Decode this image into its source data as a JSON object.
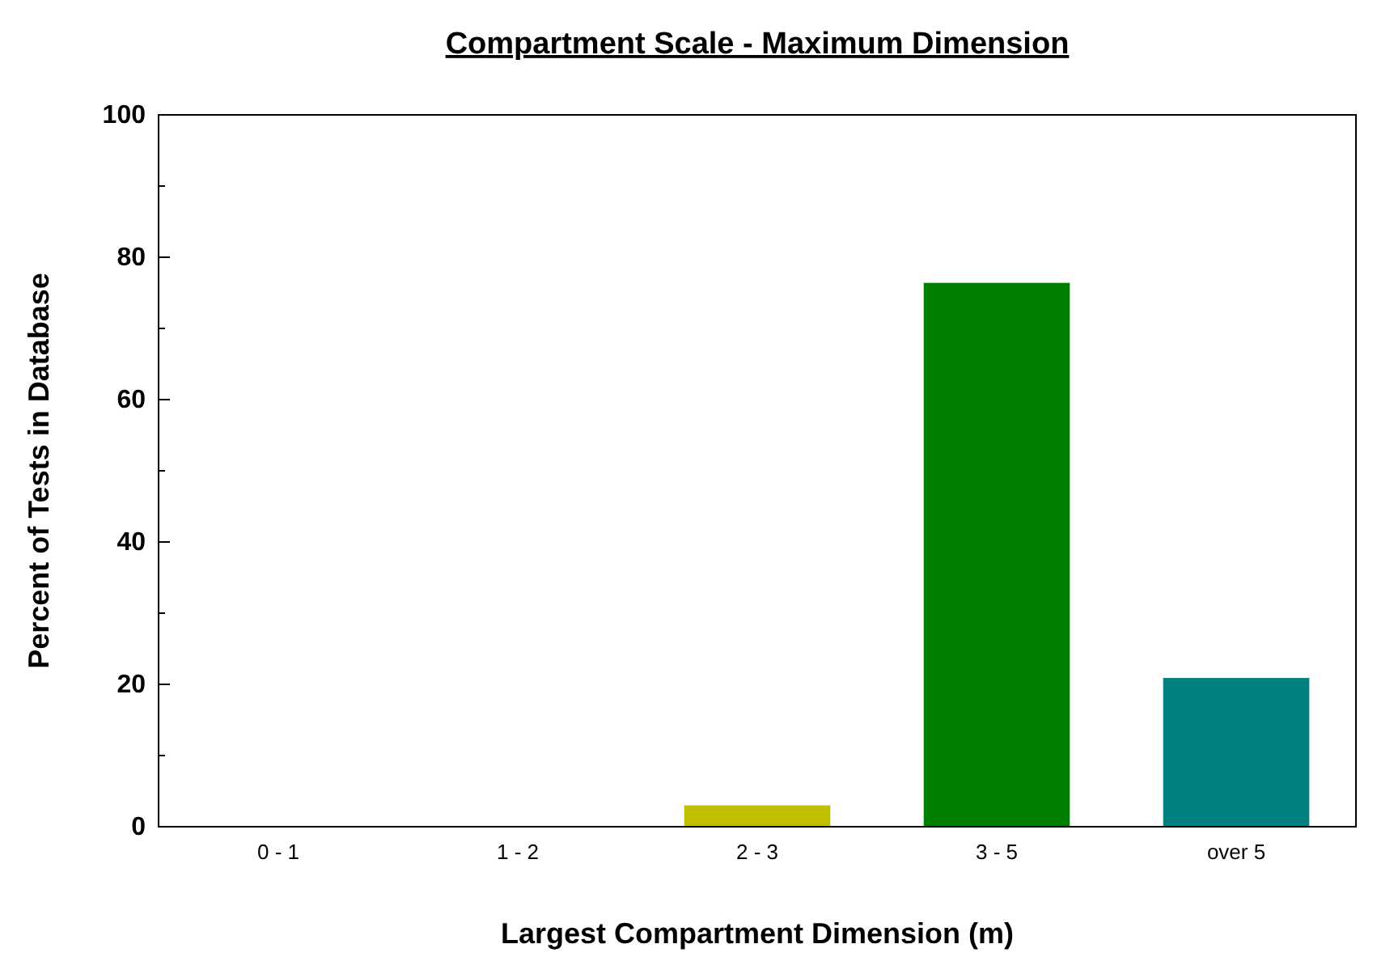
{
  "chart_data": {
    "type": "bar",
    "title": "Compartment Scale - Maximum Dimension",
    "xlabel": "Largest Compartment Dimension (m)",
    "ylabel": "Percent of Tests in Database",
    "categories": [
      "0 - 1",
      "1 - 2",
      "2 - 3",
      "3 - 5",
      "over 5"
    ],
    "values": [
      0,
      0,
      3,
      76.4,
      20.9
    ],
    "colors": [
      "#c0c000",
      "#c0c000",
      "#c0c000",
      "#008000",
      "#008080"
    ],
    "ylim": [
      0,
      100
    ],
    "yticks": [
      0,
      {
        "value": 10,
        "label": null
      },
      20,
      {
        "value": 30,
        "label": null
      },
      40,
      {
        "value": 50,
        "label": null
      },
      60,
      {
        "value": 70,
        "label": null
      },
      80,
      {
        "value": 90,
        "label": null
      },
      100
    ],
    "grid": false
  }
}
